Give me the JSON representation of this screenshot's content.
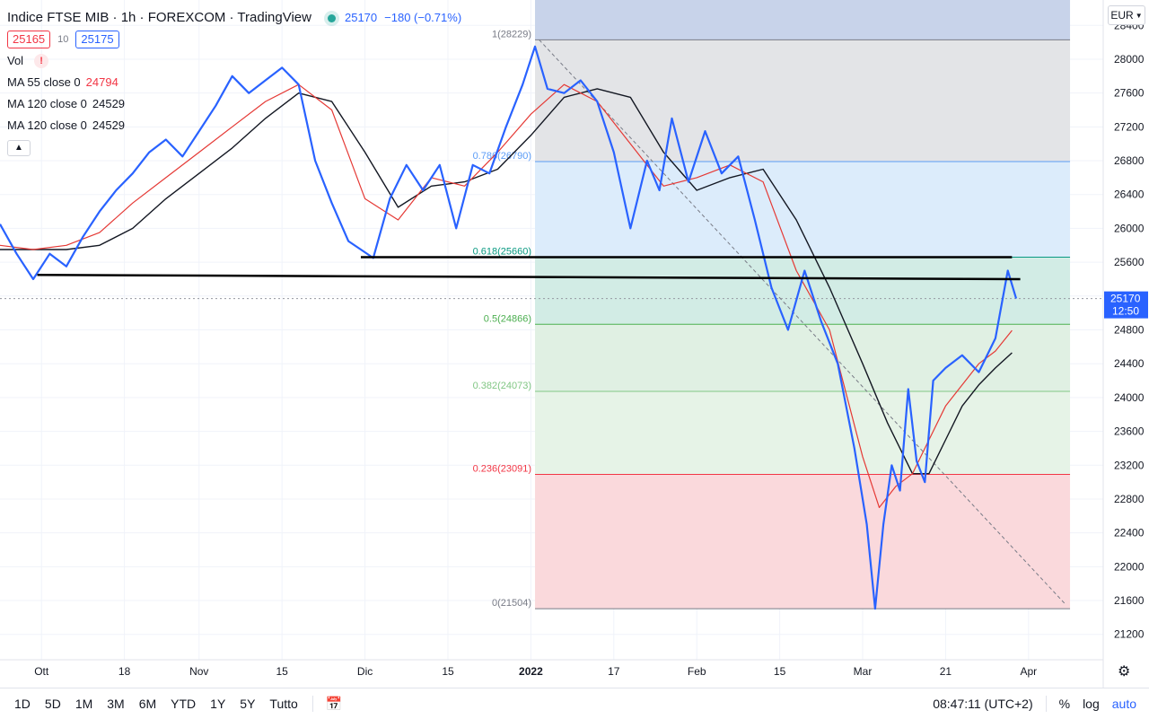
{
  "header": {
    "title": "Indice FTSE MIB · 1h · FOREXCOM · TradingView",
    "last": "25170",
    "change": "−180 (−0.71%)",
    "sell": "25165",
    "spread": "10",
    "buy": "25175"
  },
  "indicators": [
    {
      "name": "Vol",
      "value": "",
      "value_color": ""
    },
    {
      "name": "MA 55 close 0",
      "value": "24794",
      "value_color": "#f23645"
    },
    {
      "name": "MA 120 close 0",
      "value": "24529",
      "value_color": "#131722"
    },
    {
      "name": "MA 120 close 0",
      "value": "24529",
      "value_color": "#131722"
    }
  ],
  "currency": "EUR",
  "price_label": {
    "price": "25170",
    "countdown": "12:50"
  },
  "bottom_bar": {
    "ranges": [
      "1D",
      "5D",
      "1M",
      "3M",
      "6M",
      "YTD",
      "1Y",
      "5Y",
      "Tutto"
    ],
    "time": "08:47:11 (UTC+2)",
    "percent": "%",
    "log": "log",
    "auto": "auto"
  },
  "colors": {
    "price": "#2962ff",
    "ma55": "#e53935",
    "ma120": "#131722",
    "fib1": "#c8d3ea",
    "fib_0_786": "#e3e4e7",
    "fib_0_618": "#dcecfb",
    "fib_0_5": "#d2ece5",
    "fib_0_382": "#e0f0e3",
    "fib_0_236": "#e6f3e7",
    "fib_0": "#fad9dc"
  },
  "chart_data": {
    "type": "line",
    "title": "Indice FTSE MIB · 1h · FOREXCOM",
    "y_ticks": [
      21200,
      21600,
      22000,
      22400,
      22800,
      23200,
      23600,
      24000,
      24400,
      24800,
      25200,
      25600,
      26000,
      26400,
      26800,
      27200,
      27600,
      28000,
      28400
    ],
    "ylim": [
      20900,
      28700
    ],
    "x_ticks": [
      "Ott",
      "18",
      "Nov",
      "15",
      "Dic",
      "15",
      "2022",
      "17",
      "Feb",
      "15",
      "Mar",
      "21",
      "Apr"
    ],
    "x_tick_pos": [
      1,
      11,
      20,
      30,
      40,
      50,
      60,
      70,
      80,
      90,
      100,
      110,
      120
    ],
    "xlim": [
      -4,
      129
    ],
    "grid": true,
    "series": [
      {
        "name": "Indice FTSE MIB",
        "x": [
          -4,
          -2,
          0,
          2,
          4,
          6,
          8,
          10,
          12,
          14,
          16,
          18,
          20,
          22,
          24,
          26,
          28,
          30,
          32,
          34,
          36,
          38,
          39.5,
          41,
          43,
          45,
          47,
          49,
          51,
          53,
          55,
          57,
          59,
          60.5,
          62,
          64,
          66,
          68,
          70,
          72,
          74,
          75.5,
          77,
          79,
          81,
          83,
          85,
          87,
          89,
          91,
          93,
          95,
          97,
          99,
          100.5,
          101.5,
          102.5,
          103.5,
          104.5,
          105.5,
          106.5,
          107.5,
          108.5,
          110,
          112,
          114,
          116,
          117.5,
          118.5
        ],
        "y": [
          26050,
          25700,
          25400,
          25700,
          25550,
          25900,
          26200,
          26450,
          26650,
          26900,
          27050,
          26850,
          27150,
          27450,
          27800,
          27600,
          27750,
          27900,
          27700,
          26800,
          26300,
          25850,
          25750,
          25650,
          26350,
          26750,
          26450,
          26750,
          26000,
          26750,
          26650,
          27200,
          27700,
          28150,
          27650,
          27600,
          27750,
          27500,
          26900,
          26000,
          26800,
          26450,
          27300,
          26550,
          27150,
          26650,
          26850,
          26100,
          25300,
          24800,
          25500,
          24900,
          24400,
          23400,
          22500,
          21504,
          22500,
          23200,
          22900,
          24100,
          23250,
          23000,
          24200,
          24350,
          24500,
          24300,
          24700,
          25500,
          25170
        ]
      },
      {
        "name": "MA 55 close 0",
        "x": [
          -4,
          0,
          4,
          8,
          12,
          16,
          20,
          24,
          28,
          32,
          36,
          40,
          44,
          48,
          52,
          56,
          60,
          64,
          68,
          72,
          76,
          80,
          84,
          88,
          92,
          96,
          100,
          102,
          104,
          106,
          108,
          110,
          112,
          114,
          116,
          118
        ],
        "y": [
          25800,
          25750,
          25800,
          25950,
          26300,
          26600,
          26900,
          27200,
          27500,
          27700,
          27400,
          26350,
          26100,
          26600,
          26500,
          26900,
          27350,
          27700,
          27500,
          27000,
          26500,
          26600,
          26750,
          26550,
          25500,
          24800,
          23300,
          22700,
          22950,
          23100,
          23500,
          23900,
          24150,
          24400,
          24550,
          24794
        ]
      },
      {
        "name": "MA 120 close 0",
        "x": [
          -4,
          0,
          4,
          8,
          12,
          16,
          20,
          24,
          28,
          32,
          36,
          40,
          44,
          48,
          52,
          56,
          60,
          64,
          68,
          72,
          76,
          80,
          84,
          88,
          92,
          96,
          100,
          103,
          106,
          108,
          110,
          112,
          114,
          116,
          118
        ],
        "y": [
          25750,
          25750,
          25750,
          25800,
          26000,
          26350,
          26650,
          26950,
          27300,
          27600,
          27500,
          26900,
          26250,
          26500,
          26550,
          26700,
          27100,
          27550,
          27650,
          27550,
          26900,
          26450,
          26600,
          26700,
          26100,
          25300,
          24400,
          23700,
          23100,
          23100,
          23500,
          23900,
          24150,
          24350,
          24529
        ]
      }
    ],
    "fibonacci": {
      "x_start": 60.5,
      "x_end": 125,
      "levels": [
        {
          "label": "1(28229)",
          "value": 28229
        },
        {
          "label": "0.786(26790)",
          "value": 26790
        },
        {
          "label": "0.618(25660)",
          "value": 25660
        },
        {
          "label": "0.5(24866)",
          "value": 24866
        },
        {
          "label": "0.382(24073)",
          "value": 24073
        },
        {
          "label": "0.236(23091)",
          "value": 23091
        },
        {
          "label": "0(21504)",
          "value": 21504
        }
      ],
      "top_value": 28700
    },
    "trend_lines": [
      {
        "x1": 39.5,
        "y1": 25660,
        "x2": 118,
        "y2": 25660
      },
      {
        "x1": 0.5,
        "y1": 25450,
        "x2": 119,
        "y2": 25400
      }
    ],
    "diagonal": {
      "x1": 61,
      "y1": 28229,
      "x2": 124.5,
      "y2": 21550
    },
    "last_price": 25170
  }
}
